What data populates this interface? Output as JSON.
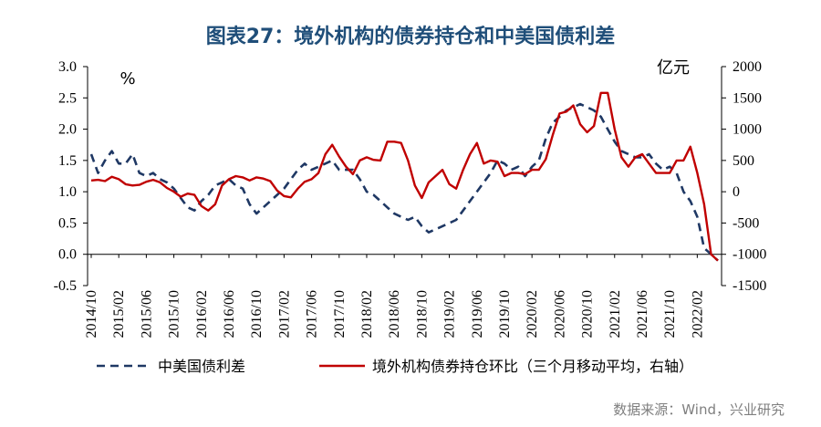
{
  "title": "图表27：境外机构的债券持仓和中美国债利差",
  "source": "数据来源：Wind，兴业研究",
  "chart_data": {
    "type": "line",
    "left_axis": {
      "unit": "%",
      "ylim": [
        -0.5,
        3.0
      ],
      "ticks": [
        "3.0",
        "2.5",
        "2.0",
        "1.5",
        "1.0",
        "0.5",
        "0.0",
        "-0.5"
      ]
    },
    "right_axis": {
      "unit": "亿元",
      "ylim": [
        -1500,
        2000
      ],
      "ticks": [
        "2000",
        "1500",
        "1000",
        "500",
        "0",
        "-500",
        "-1000",
        "-1500"
      ]
    },
    "x_ticks": [
      "2014/10",
      "2015/02",
      "2015/06",
      "2015/10",
      "2016/02",
      "2016/06",
      "2016/10",
      "2017/02",
      "2017/06",
      "2017/10",
      "2018/02",
      "2018/06",
      "2018/10",
      "2019/02",
      "2019/06",
      "2019/10",
      "2020/02",
      "2020/06",
      "2020/10",
      "2021/02",
      "2021/06",
      "2021/10",
      "2022/02"
    ],
    "months": [
      "2014/10",
      "2014/11",
      "2014/12",
      "2015/01",
      "2015/02",
      "2015/03",
      "2015/04",
      "2015/05",
      "2015/06",
      "2015/07",
      "2015/08",
      "2015/09",
      "2015/10",
      "2015/11",
      "2015/12",
      "2016/01",
      "2016/02",
      "2016/03",
      "2016/04",
      "2016/05",
      "2016/06",
      "2016/07",
      "2016/08",
      "2016/09",
      "2016/10",
      "2016/11",
      "2016/12",
      "2017/01",
      "2017/02",
      "2017/03",
      "2017/04",
      "2017/05",
      "2017/06",
      "2017/07",
      "2017/08",
      "2017/09",
      "2017/10",
      "2017/11",
      "2017/12",
      "2018/01",
      "2018/02",
      "2018/03",
      "2018/04",
      "2018/05",
      "2018/06",
      "2018/07",
      "2018/08",
      "2018/09",
      "2018/10",
      "2018/11",
      "2018/12",
      "2019/01",
      "2019/02",
      "2019/03",
      "2019/04",
      "2019/05",
      "2019/06",
      "2019/07",
      "2019/08",
      "2019/09",
      "2019/10",
      "2019/11",
      "2019/12",
      "2020/01",
      "2020/02",
      "2020/03",
      "2020/04",
      "2020/05",
      "2020/06",
      "2020/07",
      "2020/08",
      "2020/09",
      "2020/10",
      "2020/11",
      "2020/12",
      "2021/01",
      "2021/02",
      "2021/03",
      "2021/04",
      "2021/05",
      "2021/06",
      "2021/07",
      "2021/08",
      "2021/09",
      "2021/10",
      "2021/11",
      "2021/12",
      "2022/01",
      "2022/02",
      "2022/03",
      "2022/04",
      "2022/05"
    ],
    "series": [
      {
        "name": "中美国债利差",
        "axis": "left",
        "style": "dashed",
        "color": "#1f3864",
        "values": [
          1.6,
          1.3,
          1.5,
          1.65,
          1.45,
          1.45,
          1.6,
          1.3,
          1.25,
          1.3,
          1.2,
          1.15,
          1.05,
          0.9,
          0.75,
          0.7,
          0.85,
          0.95,
          1.1,
          1.15,
          1.2,
          1.1,
          1.05,
          0.8,
          0.65,
          0.75,
          0.85,
          0.95,
          1.05,
          1.2,
          1.35,
          1.45,
          1.35,
          1.4,
          1.45,
          1.5,
          1.35,
          1.35,
          1.35,
          1.2,
          1.0,
          0.95,
          0.85,
          0.75,
          0.65,
          0.6,
          0.55,
          0.6,
          0.45,
          0.35,
          0.4,
          0.45,
          0.5,
          0.55,
          0.7,
          0.85,
          1.0,
          1.15,
          1.3,
          1.5,
          1.45,
          1.35,
          1.4,
          1.25,
          1.4,
          1.5,
          1.85,
          2.1,
          2.2,
          2.3,
          2.35,
          2.4,
          2.35,
          2.3,
          2.2,
          2.0,
          1.8,
          1.65,
          1.6,
          1.55,
          1.55,
          1.6,
          1.45,
          1.35,
          1.4,
          1.3,
          1.0,
          0.85,
          0.6,
          0.1,
          0.0,
          -0.1
        ]
      },
      {
        "name": "境外机构债券持仓环比（三个月移动平均，右轴）",
        "axis": "right",
        "style": "solid",
        "color": "#c00000",
        "values": [
          180,
          190,
          170,
          240,
          200,
          120,
          100,
          110,
          160,
          190,
          150,
          60,
          0,
          -80,
          -30,
          -50,
          -230,
          -300,
          -200,
          100,
          200,
          250,
          230,
          180,
          230,
          210,
          170,
          20,
          -70,
          -90,
          50,
          160,
          200,
          300,
          600,
          750,
          560,
          400,
          280,
          500,
          550,
          510,
          500,
          800,
          800,
          780,
          500,
          100,
          -100,
          150,
          250,
          350,
          120,
          50,
          350,
          600,
          780,
          450,
          500,
          480,
          250,
          300,
          300,
          280,
          350,
          350,
          520,
          900,
          1250,
          1280,
          1380,
          1080,
          950,
          1050,
          1580,
          1580,
          1000,
          550,
          400,
          550,
          600,
          450,
          300,
          300,
          300,
          500,
          500,
          720,
          300,
          -200,
          -1000,
          -1100
        ]
      }
    ],
    "legend": {
      "position": "bottom"
    },
    "grid": false
  }
}
